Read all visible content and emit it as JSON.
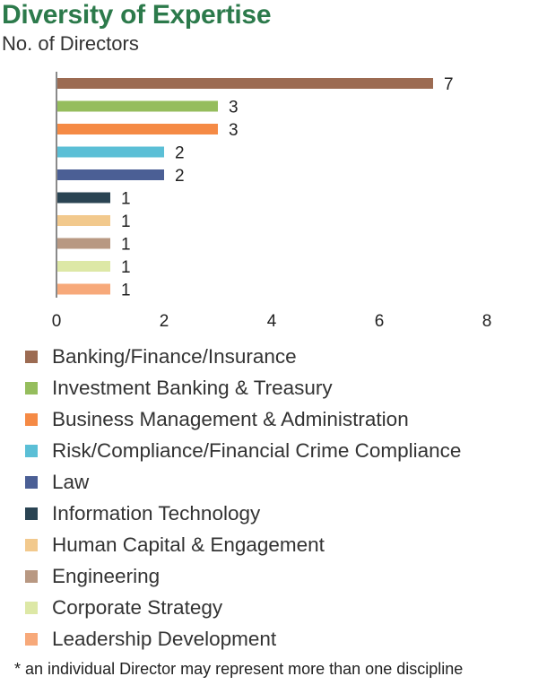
{
  "header": {
    "title": "Diversity of Expertise",
    "subtitle": "No. of Directors"
  },
  "chart_data": {
    "type": "bar",
    "orientation": "horizontal",
    "categories": [
      "Banking/Finance/Insurance",
      "Investment Banking & Treasury",
      "Business Management & Administration",
      "Risk/Compliance/Financial Crime Compliance",
      "Law",
      "Information Technology",
      "Human Capital & Engagement",
      "Engineering",
      "Corporate Strategy",
      "Leadership Development"
    ],
    "values": [
      7,
      3,
      3,
      2,
      2,
      1,
      1,
      1,
      1,
      1
    ],
    "colors": [
      "#9c6b52",
      "#95bd5d",
      "#f58a45",
      "#5bbfd6",
      "#4b5f95",
      "#2a4453",
      "#f2c98d",
      "#b89882",
      "#dde8a6",
      "#f7a97a"
    ],
    "xlim": [
      0,
      8
    ],
    "xticks": [
      0,
      2,
      4,
      6,
      8
    ],
    "data_labels": [
      "7",
      "3",
      "3",
      "2",
      "2",
      "1",
      "1",
      "1",
      "1",
      "1"
    ],
    "legend": "bottom",
    "grid": false
  },
  "footnote": "* an individual Director may represent more than one discipline"
}
